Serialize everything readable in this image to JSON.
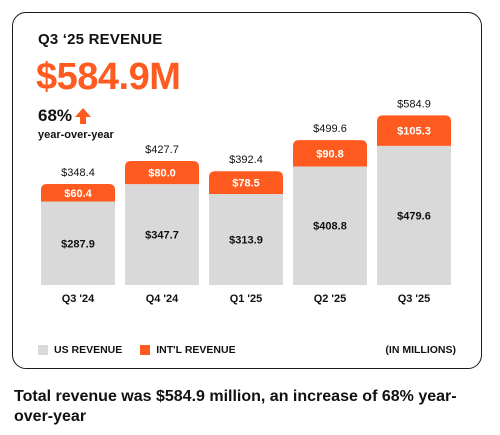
{
  "card": {
    "title": "Q3 ‘25 REVENUE",
    "headline_value": "$584.9M",
    "growth_percent": "68%",
    "growth_label": "year-over-year"
  },
  "legend": {
    "us_label": "US REVENUE",
    "intl_label": "INT'L REVENUE",
    "units_note": "(IN MILLIONS)"
  },
  "caption": "Total revenue was $584.9 million, an increase of 68% year-over-year",
  "colors": {
    "us": "#d9d9d9",
    "intl": "#ff5a1f",
    "accent": "#ff5a1f"
  },
  "chart_data": {
    "type": "bar",
    "stacked": true,
    "categories": [
      "Q3 '24",
      "Q4 '24",
      "Q1 '25",
      "Q2 '25",
      "Q3 '25"
    ],
    "series": [
      {
        "name": "US REVENUE",
        "values": [
          287.9,
          347.7,
          313.9,
          408.8,
          479.6
        ],
        "labels": [
          "$287.9",
          "$347.7",
          "$313.9",
          "$408.8",
          "$479.6"
        ]
      },
      {
        "name": "INT'L REVENUE",
        "values": [
          60.4,
          80.0,
          78.5,
          90.8,
          105.3
        ],
        "labels": [
          "$60.4",
          "$80.0",
          "$78.5",
          "$90.8",
          "$105.3"
        ]
      }
    ],
    "totals": [
      348.4,
      427.7,
      392.4,
      499.6,
      584.9
    ],
    "total_labels": [
      "$348.4",
      "$427.7",
      "$392.4",
      "$499.6",
      "$584.9"
    ],
    "ylim": [
      0,
      600
    ],
    "grid": false,
    "legend_position": "bottom-left"
  }
}
